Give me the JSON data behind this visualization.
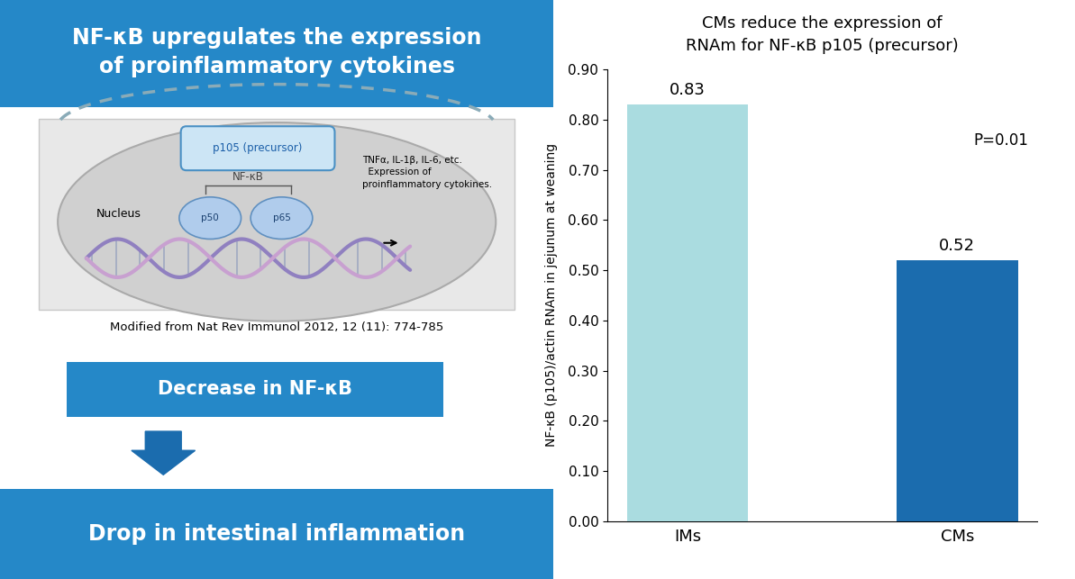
{
  "title": "CMs reduce the expression of\nRNAm for NF-κB p105 (precursor)",
  "categories": [
    "IMs",
    "CMs"
  ],
  "values": [
    0.83,
    0.52
  ],
  "bar_colors": [
    "#aadce0",
    "#1b6cae"
  ],
  "ylabel": "NF-κB (p105)/actin RNAm in jejunum at weaning",
  "ylim": [
    0.0,
    0.9
  ],
  "yticks": [
    0.0,
    0.1,
    0.2,
    0.3,
    0.4,
    0.5,
    0.6,
    0.7,
    0.8,
    0.9
  ],
  "p_value_text": "P=0.01",
  "left_title": "NF-κB upregulates the expression\nof proinflammatory cytokines",
  "left_title_bg": "#2588c8",
  "decrease_text": "Decrease in NF-κB",
  "decrease_bg": "#2588c8",
  "drop_text": "Drop in intestinal inflammation",
  "drop_bg": "#2588c8",
  "reference_text": "Modified from Nat Rev Immunol 2012, 12 (11): 774-785",
  "bg_color": "#ffffff",
  "value_labels": [
    "0.83",
    "0.52"
  ]
}
